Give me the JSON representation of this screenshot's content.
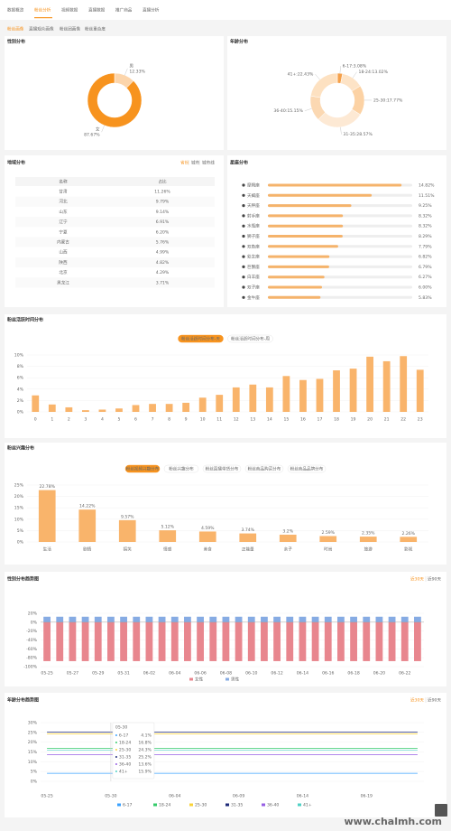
{
  "nav": {
    "tabs": [
      "数据概览",
      "粉丝分析",
      "视频数据",
      "直播数据",
      "推广商品",
      "直播分析"
    ],
    "subtabs": [
      "粉丝画像",
      "直播观众画像",
      "粉丝团画像",
      "粉丝重合度"
    ]
  },
  "region": {
    "title": "地域分布",
    "tabs": [
      "省份",
      "城市",
      "城市线"
    ],
    "header": [
      "名称",
      "占比"
    ],
    "rows": [
      [
        "甘肃",
        "11.26%"
      ],
      [
        "河北",
        "9.79%"
      ],
      [
        "山东",
        "9.14%"
      ],
      [
        "辽宁",
        "6.91%"
      ],
      [
        "宁夏",
        "6.20%"
      ],
      [
        "内蒙古",
        "5.76%"
      ],
      [
        "山西",
        "4.99%"
      ],
      [
        "陕西",
        "4.82%"
      ],
      [
        "北京",
        "4.29%"
      ],
      [
        "黑龙江",
        "3.71%"
      ]
    ]
  },
  "watermark": "www.chalmh.com",
  "chart_data": [
    {
      "type": "pie",
      "title": "性别分布",
      "categories": [
        "男",
        "女"
      ],
      "values": [
        12.33,
        87.67
      ],
      "value_labels": [
        "12.33%",
        "87.67%"
      ],
      "colors": [
        "#fcd5ab",
        "#f7931e"
      ]
    },
    {
      "type": "pie",
      "title": "年龄分布",
      "labels": [
        "6-17:3.08%",
        "18-24:13.02%",
        "25-30:17.77%",
        "31-35:28.57%",
        "36-40:15.15%",
        "41+:22.43%"
      ],
      "values": [
        3.08,
        13.02,
        17.77,
        28.57,
        15.15,
        22.43
      ],
      "colors": [
        "#f5a04a",
        "#fde3c6",
        "#fcd2a4",
        "#fde9d4",
        "#fbd8b2",
        "#fde1c1"
      ]
    },
    {
      "type": "hbar",
      "title": "星座分布",
      "categories": [
        "摩羯座",
        "天蝎座",
        "天秤座",
        "射手座",
        "水瓶座",
        "狮子座",
        "双鱼座",
        "处女座",
        "巨蟹座",
        "白羊座",
        "双子座",
        "金牛座"
      ],
      "values": [
        14.82,
        11.51,
        9.25,
        8.32,
        8.32,
        8.29,
        7.79,
        6.82,
        6.79,
        6.27,
        6.0,
        5.83
      ],
      "value_labels": [
        "14.82%",
        "11.51%",
        "9.25%",
        "8.32%",
        "8.32%",
        "8.29%",
        "7.79%",
        "6.82%",
        "6.79%",
        "6.27%",
        "6.00%",
        "5.83%"
      ],
      "xlim": [
        0,
        16
      ],
      "color": "#f5b36b"
    },
    {
      "type": "bar",
      "title": "粉丝活跃时间分布",
      "tabs": [
        "粉丝活跃时间分布-天",
        "粉丝活跃时间分布-周"
      ],
      "categories": [
        "0",
        "1",
        "2",
        "3",
        "4",
        "5",
        "6",
        "7",
        "8",
        "9",
        "10",
        "11",
        "12",
        "13",
        "14",
        "15",
        "16",
        "17",
        "18",
        "19",
        "20",
        "21",
        "22",
        "23"
      ],
      "values": [
        2.9,
        1.3,
        0.8,
        0.3,
        0.4,
        0.6,
        1.2,
        1.4,
        1.4,
        1.6,
        2.5,
        3.0,
        4.3,
        4.8,
        4.3,
        6.3,
        5.6,
        5.8,
        7.3,
        7.6,
        9.7,
        8.9,
        9.8,
        7.4
      ],
      "ylim": [
        0,
        10
      ],
      "yticks": [
        {
          "value": 0,
          "label": "0%"
        },
        {
          "value": 2,
          "label": "2%"
        },
        {
          "value": 4,
          "label": "4%"
        },
        {
          "value": 6,
          "label": "6%"
        },
        {
          "value": 8,
          "label": "8%"
        },
        {
          "value": 10,
          "label": "10%"
        }
      ],
      "color": "#f9b46b",
      "grid": true
    },
    {
      "type": "bar",
      "title": "粉丝兴趣分布",
      "tabs": [
        "粉丝视频兴趣分布",
        "粉丝兴趣分布",
        "粉丝直播带货分布",
        "粉丝商品购买分布",
        "粉丝商品品牌分布"
      ],
      "categories": [
        "生活",
        "剧情",
        "搞笑",
        "情感",
        "美食",
        "正能量",
        "亲子",
        "时尚",
        "旅游",
        "影视"
      ],
      "values": [
        22.78,
        14.22,
        9.57,
        5.12,
        4.59,
        3.74,
        3.2,
        2.59,
        2.35,
        2.26
      ],
      "value_labels": [
        "22.78%",
        "14.22%",
        "9.57%",
        "5.12%",
        "4.59%",
        "3.74%",
        "3.2%",
        "2.59%",
        "2.35%",
        "2.26%"
      ],
      "ylim": [
        0,
        25
      ],
      "yticks": [
        {
          "value": 0,
          "label": "0%"
        },
        {
          "value": 5,
          "label": "5%"
        },
        {
          "value": 10,
          "label": "10%"
        },
        {
          "value": 15,
          "label": "15%"
        },
        {
          "value": 20,
          "label": "20%"
        },
        {
          "value": 25,
          "label": "25%"
        }
      ],
      "color": "#f9b46b",
      "grid": true
    },
    {
      "type": "bar",
      "title": "性别分布趋势图",
      "tabs": [
        "近30天",
        "近90天"
      ],
      "categories": [
        "05-25",
        null,
        "05-27",
        null,
        "05-29",
        null,
        "05-31",
        null,
        "06-02",
        null,
        "06-04",
        null,
        "06-06",
        null,
        "06-08",
        null,
        "06-10",
        null,
        "06-12",
        null,
        "06-14",
        null,
        "06-16",
        null,
        "06-18",
        null,
        "06-20",
        null,
        "06-22",
        null
      ],
      "series": [
        {
          "name": "女性",
          "color": "#e8868e",
          "values": [
            -87.67,
            -87.67,
            -87.67,
            -87.67,
            -87.67,
            -87.67,
            -87.67,
            -87.67,
            -87.67,
            -87.67,
            -87.67,
            -87.67,
            -87.67,
            -87.67,
            -87.67,
            -87.67,
            -87.67,
            -87.67,
            -87.67,
            -87.67,
            -87.67,
            -87.67,
            -87.67,
            -87.67,
            -87.67,
            -87.67,
            -87.67,
            -87.67,
            -87.67,
            -87.67
          ]
        },
        {
          "name": "男性",
          "color": "#86abe3",
          "values": [
            12.33,
            12.33,
            12.33,
            12.33,
            12.33,
            12.33,
            12.33,
            12.33,
            12.33,
            12.33,
            12.33,
            12.33,
            12.33,
            12.33,
            12.33,
            12.33,
            12.33,
            12.33,
            12.33,
            12.33,
            12.33,
            12.33,
            12.33,
            12.33,
            12.33,
            12.33,
            12.33,
            12.33,
            12.33,
            12.33
          ]
        }
      ],
      "ylim": [
        -100,
        20
      ],
      "yticks": [
        {
          "value": 20,
          "label": "20%"
        },
        {
          "value": 0,
          "label": "0%"
        },
        {
          "value": -20,
          "label": "-20%"
        },
        {
          "value": -40,
          "label": "-40%"
        },
        {
          "value": -60,
          "label": "-60%"
        },
        {
          "value": -80,
          "label": "-80%"
        },
        {
          "value": -100,
          "label": "-100%"
        }
      ],
      "grid": true
    },
    {
      "type": "line",
      "title": "年龄分布趋势图",
      "tabs": [
        "近30天",
        "近90天"
      ],
      "categories": [
        "05-25",
        null,
        null,
        null,
        null,
        "05-30",
        null,
        null,
        null,
        null,
        "06-04",
        null,
        null,
        null,
        null,
        "06-09",
        null,
        null,
        null,
        null,
        "06-14",
        null,
        null,
        null,
        null,
        "06-19",
        null,
        null,
        null,
        null
      ],
      "series": [
        {
          "name": "6-17",
          "color": "#3aa1ff",
          "values": [
            4.1,
            4.1,
            4.1,
            4.1,
            4.1,
            4.1,
            4.1,
            4.1,
            4.1,
            4.1,
            4.1,
            4.1,
            4.1,
            4.1,
            4.1,
            4.1,
            4.1,
            4.1,
            4.1,
            4.1,
            4.1,
            4.1,
            4.1,
            4.1,
            4.1,
            4.1,
            4.1,
            4.1,
            4.1,
            4.1
          ]
        },
        {
          "name": "18-24",
          "color": "#36cb6b",
          "values": [
            16.8,
            16.8,
            16.8,
            16.8,
            16.8,
            16.8,
            16.8,
            16.8,
            16.8,
            16.8,
            16.8,
            16.8,
            16.8,
            16.8,
            16.8,
            16.8,
            16.8,
            16.8,
            16.8,
            16.8,
            16.8,
            16.8,
            16.8,
            16.8,
            16.8,
            16.8,
            16.8,
            16.8,
            16.8,
            16.8
          ]
        },
        {
          "name": "25-30",
          "color": "#fad337",
          "values": [
            24.3,
            24.3,
            24.3,
            24.3,
            24.3,
            24.3,
            24.3,
            24.3,
            24.3,
            24.3,
            24.3,
            24.3,
            24.3,
            24.3,
            24.3,
            24.3,
            24.3,
            24.3,
            24.3,
            24.3,
            24.3,
            24.3,
            24.3,
            24.3,
            24.3,
            24.3,
            24.3,
            24.3,
            24.3,
            24.3
          ]
        },
        {
          "name": "31-35",
          "color": "#1e2a78",
          "values": [
            25.2,
            25.2,
            25.2,
            25.2,
            25.2,
            25.2,
            25.2,
            25.2,
            25.2,
            25.2,
            25.2,
            25.2,
            25.2,
            25.2,
            25.2,
            25.2,
            25.2,
            25.2,
            25.2,
            25.2,
            25.2,
            25.2,
            25.2,
            25.2,
            25.2,
            25.2,
            25.2,
            25.2,
            25.2,
            25.2
          ]
        },
        {
          "name": "36-40",
          "color": "#975fe4",
          "values": [
            13.6,
            13.6,
            13.6,
            13.6,
            13.6,
            13.6,
            13.6,
            13.6,
            13.6,
            13.6,
            13.6,
            13.6,
            13.6,
            13.6,
            13.6,
            13.6,
            13.6,
            13.6,
            13.6,
            13.6,
            13.6,
            13.6,
            13.6,
            13.6,
            13.6,
            13.6,
            13.6,
            13.6,
            13.6,
            13.6
          ]
        },
        {
          "name": "41+",
          "color": "#4fd1c5",
          "values": [
            15.9,
            15.9,
            15.9,
            15.9,
            15.9,
            15.9,
            15.9,
            15.9,
            15.9,
            15.9,
            15.9,
            15.9,
            15.9,
            15.9,
            15.9,
            15.9,
            15.9,
            15.9,
            15.9,
            15.9,
            15.9,
            15.9,
            15.9,
            15.9,
            15.9,
            15.9,
            15.9,
            15.9,
            15.9,
            15.9
          ]
        }
      ],
      "ylim": [
        0,
        30
      ],
      "yticks": [
        {
          "value": 0,
          "label": "0%"
        },
        {
          "value": 5,
          "label": "5%"
        },
        {
          "value": 10,
          "label": "10%"
        },
        {
          "value": 15,
          "label": "15%"
        },
        {
          "value": 20,
          "label": "20%"
        },
        {
          "value": 25,
          "label": "25%"
        },
        {
          "value": 30,
          "label": "30%"
        }
      ],
      "grid": true,
      "tooltip": {
        "title": "05-30",
        "value_labels": [
          "4.1%",
          "16.8%",
          "24.3%",
          "25.2%",
          "13.6%",
          "15.9%"
        ]
      }
    }
  ]
}
